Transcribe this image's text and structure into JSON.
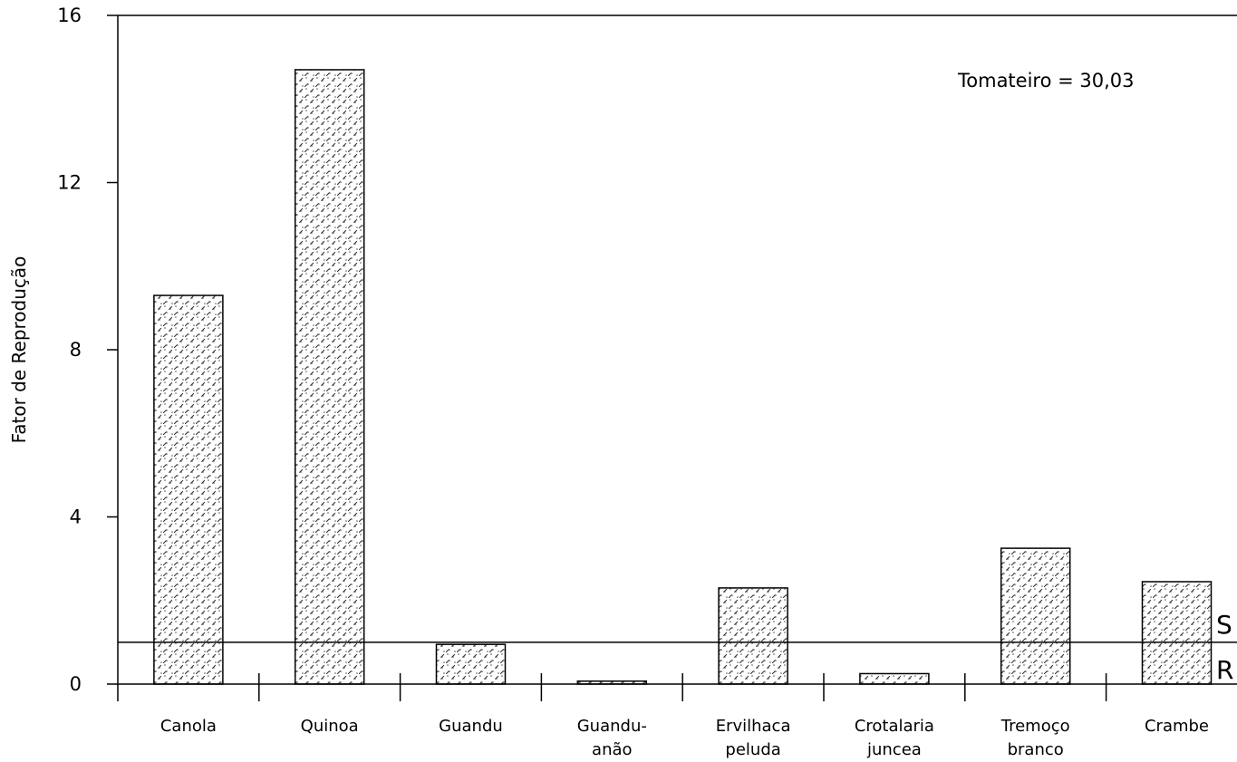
{
  "chart_data": {
    "type": "bar",
    "title": "",
    "xlabel": "",
    "ylabel": "Fator de Reprodução",
    "ylim": [
      0,
      16
    ],
    "yticks": [
      "0",
      "4",
      "8",
      "12",
      "16"
    ],
    "categories": [
      [
        "Canola"
      ],
      [
        "Quinoa"
      ],
      [
        "Guandu"
      ],
      [
        "Guandu-",
        "anão"
      ],
      [
        "Ervilhaca",
        "peluda"
      ],
      [
        "Crotalaria",
        "juncea"
      ],
      [
        "Tremoço",
        "branco"
      ],
      [
        "Crambe"
      ]
    ],
    "values": [
      9.3,
      14.7,
      0.95,
      0.07,
      2.3,
      0.25,
      3.25,
      2.45
    ],
    "reference_line": {
      "value": 1,
      "label_above": "S",
      "label_below": "R"
    },
    "annotation": "Tomateiro =  30,03",
    "grid": false,
    "legend": "none"
  }
}
